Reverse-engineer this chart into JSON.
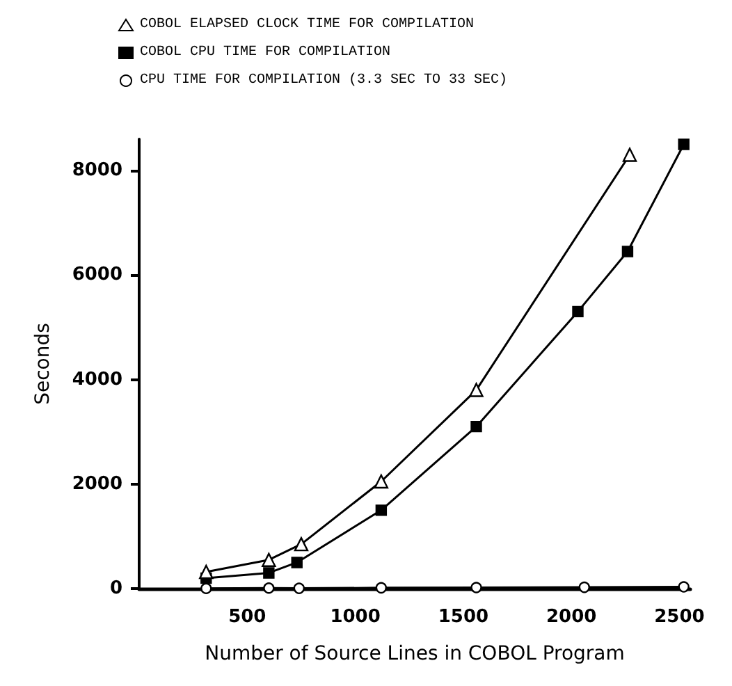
{
  "chart_data": {
    "type": "line",
    "xlabel": "Number of Source Lines in COBOL Program",
    "ylabel": "Seconds",
    "xlim": [
      0,
      2550
    ],
    "xticks": [
      500,
      1000,
      1500,
      2000,
      2500
    ],
    "ylim": [
      0,
      8600
    ],
    "yticks": [
      0,
      2000,
      4000,
      6000,
      8000
    ],
    "grid": false,
    "legend": "top",
    "line_style": "solid",
    "series": [
      {
        "name": "COBOL ELAPSED CLOCK TIME FOR COMPILATION",
        "color": "#000000",
        "marker": "triangle",
        "x": [
          310,
          600,
          750,
          1120,
          1560,
          2270
        ],
        "values": [
          320,
          550,
          850,
          2050,
          3800,
          8300
        ]
      },
      {
        "name": "COBOL CPU TIME FOR COMPILATION",
        "color": "#000000",
        "marker": "square",
        "x": [
          310,
          600,
          730,
          1120,
          1560,
          2030,
          2260,
          2520
        ],
        "values": [
          200,
          300,
          500,
          1500,
          3100,
          5300,
          6450,
          8500
        ]
      },
      {
        "name": "CPU TIME FOR COMPILATION (3.3 SEC TO 33 SEC)",
        "color": "#000000",
        "marker": "circle",
        "x": [
          310,
          600,
          740,
          1120,
          1560,
          2060,
          2520
        ],
        "values": [
          3.3,
          10,
          5,
          15,
          20,
          25,
          33
        ]
      }
    ]
  }
}
